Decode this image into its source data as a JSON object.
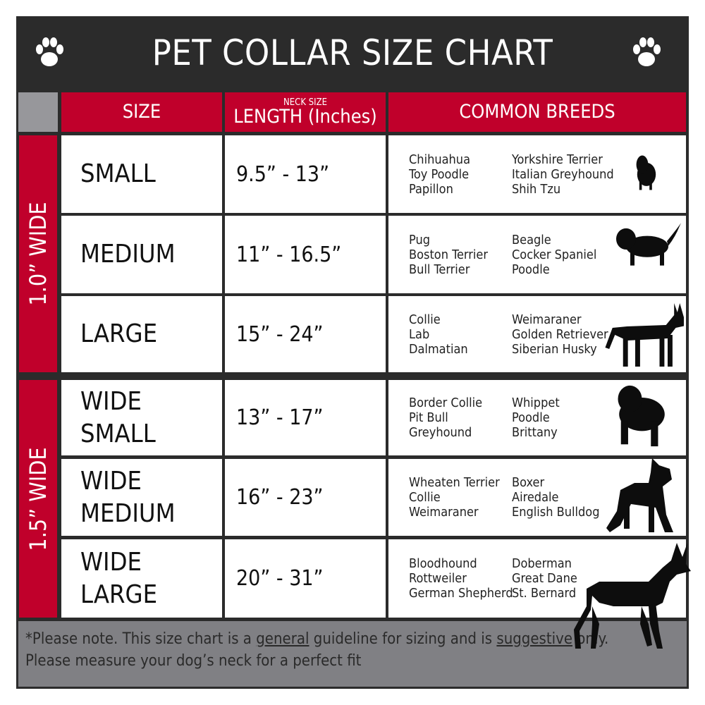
{
  "title": "PET COLLAR SIZE CHART",
  "icons": {
    "left": "paw-icon",
    "right": "paw-icon"
  },
  "colors": {
    "header_bg": "#2b2b2b",
    "accent_red": "#c0002b",
    "footer_gray": "#808084"
  },
  "headers": {
    "size": "SIZE",
    "length_small": "NECK SIZE",
    "length": "LENGTH (Inches)",
    "breeds": "COMMON BREEDS"
  },
  "groups": [
    {
      "label": "1.0” WIDE"
    },
    {
      "label": "1.5” WIDE"
    }
  ],
  "rows": [
    {
      "size": "SMALL",
      "length": "9.5” - 13”",
      "breeds_a": [
        "Chihuahua",
        "Toy Poodle",
        "Papillon"
      ],
      "breeds_b": [
        "Yorkshire Terrier",
        "Italian Greyhound",
        "Shih Tzu"
      ],
      "icon": "small-dog-icon"
    },
    {
      "size": "MEDIUM",
      "length": "11” - 16.5”",
      "breeds_a": [
        "Pug",
        "Boston Terrier",
        "Bull Terrier"
      ],
      "breeds_b": [
        "Beagle",
        "Cocker Spaniel",
        "Poodle"
      ],
      "icon": "medium-dog-icon"
    },
    {
      "size": "LARGE",
      "length": "15” - 24”",
      "breeds_a": [
        "Collie",
        "Lab",
        "Dalmatian"
      ],
      "breeds_b": [
        "Weimaraner",
        "Golden Retriever",
        "Siberian Husky"
      ],
      "icon": "large-dog-icon"
    },
    {
      "size": "WIDE SMALL",
      "length": "13” - 17”",
      "breeds_a": [
        "Border Collie",
        "Pit Bull",
        "Greyhound"
      ],
      "breeds_b": [
        "Whippet",
        "Poodle",
        "Brittany"
      ],
      "icon": "bulldog-icon"
    },
    {
      "size": "WIDE MEDIUM",
      "length": "16” - 23”",
      "breeds_a": [
        "Wheaten Terrier",
        "Collie",
        "Weimaraner"
      ],
      "breeds_b": [
        "Boxer",
        "Airedale",
        "English Bulldog"
      ],
      "icon": "pitbull-icon"
    },
    {
      "size": "WIDE LARGE",
      "length": "20” - 31”",
      "breeds_a": [
        "Bloodhound",
        "Rottweiler",
        "German Shepherd"
      ],
      "breeds_b": [
        "Doberman",
        "Great Dane",
        "St. Bernard"
      ],
      "icon": "doberman-icon"
    }
  ],
  "footer": {
    "p1": "*Please note. This size chart is a",
    "u1": "general",
    "p2": " guideline for sizing and is",
    "u2": "suggestive",
    "p3": " only.",
    "line2": "Please measure your dog’s neck for a perfect fit"
  }
}
